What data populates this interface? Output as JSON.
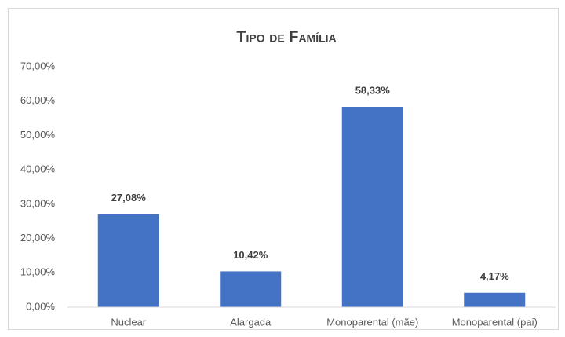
{
  "chart_data": {
    "type": "bar",
    "title": "Tipo de Família",
    "categories": [
      "Nuclear",
      "Alargada",
      "Monoparental (mãe)",
      "Monoparental (pai)"
    ],
    "values": [
      27.08,
      10.42,
      58.33,
      4.17
    ],
    "value_labels": [
      "27,08%",
      "10,42%",
      "58,33%",
      "4,17%"
    ],
    "color": "#4472c4",
    "ylim": [
      0,
      70
    ],
    "yticks": [
      {
        "value": 0,
        "label": "0,00%"
      },
      {
        "value": 10,
        "label": "10,00%"
      },
      {
        "value": 20,
        "label": "20,00%"
      },
      {
        "value": 30,
        "label": "30,00%"
      },
      {
        "value": 40,
        "label": "40,00%"
      },
      {
        "value": 50,
        "label": "50,00%"
      },
      {
        "value": 60,
        "label": "60,00%"
      },
      {
        "value": 70,
        "label": "70,00%"
      }
    ],
    "grid": false
  }
}
